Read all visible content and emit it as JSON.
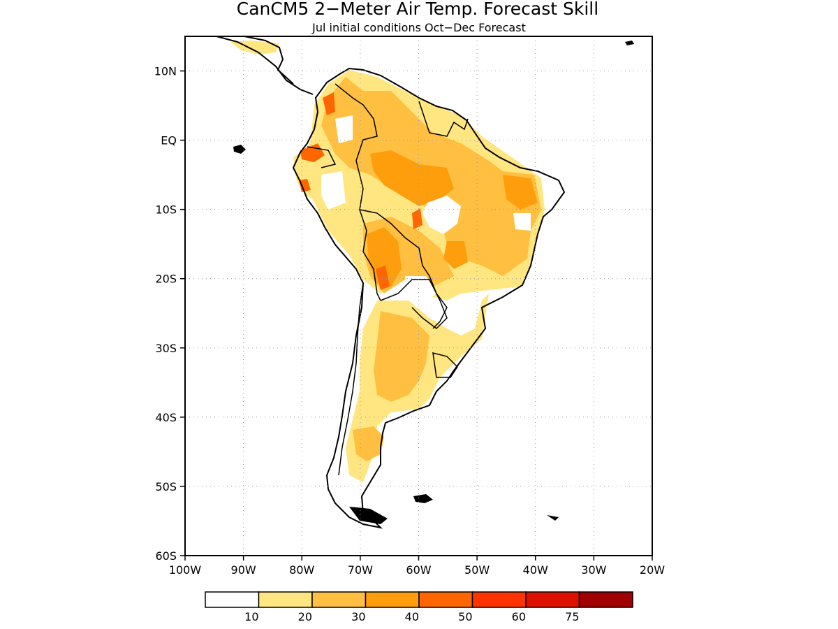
{
  "title": "CanCM5 2−Meter Air Temp. Forecast Skill",
  "subtitle": "Jul initial conditions  Oct−Dec Forecast",
  "map": {
    "region": "South America",
    "projection": "lat-lon",
    "lon_range": [
      -100,
      -20
    ],
    "lat_range": [
      -60,
      15
    ],
    "grid": "dotted",
    "x_ticks": [
      {
        "value": -100,
        "label": "100W"
      },
      {
        "value": -90,
        "label": "90W"
      },
      {
        "value": -80,
        "label": "80W"
      },
      {
        "value": -70,
        "label": "70W"
      },
      {
        "value": -60,
        "label": "60W"
      },
      {
        "value": -50,
        "label": "50W"
      },
      {
        "value": -40,
        "label": "40W"
      },
      {
        "value": -30,
        "label": "30W"
      },
      {
        "value": -20,
        "label": "20W"
      }
    ],
    "y_ticks": [
      {
        "value": 10,
        "label": "10N"
      },
      {
        "value": 0,
        "label": "EQ"
      },
      {
        "value": -10,
        "label": "10S"
      },
      {
        "value": -20,
        "label": "20S"
      },
      {
        "value": -30,
        "label": "30S"
      },
      {
        "value": -40,
        "label": "40S"
      },
      {
        "value": -50,
        "label": "50S"
      },
      {
        "value": -60,
        "label": "60S"
      }
    ]
  },
  "legend": {
    "bins": [
      {
        "color": "#ffffff"
      },
      {
        "color": "#ffe680"
      },
      {
        "color": "#ffbf40"
      },
      {
        "color": "#ff9e0d"
      },
      {
        "color": "#ff6600"
      },
      {
        "color": "#ff3300"
      },
      {
        "color": "#dd1100"
      },
      {
        "color": "#a00000"
      }
    ],
    "labels": [
      "10",
      "20",
      "30",
      "40",
      "50",
      "60",
      "75"
    ]
  },
  "field_colors": {
    "c10": "#ffe680",
    "c20": "#ffbf40",
    "c30": "#ff9e0d",
    "c40": "#ff6600"
  }
}
